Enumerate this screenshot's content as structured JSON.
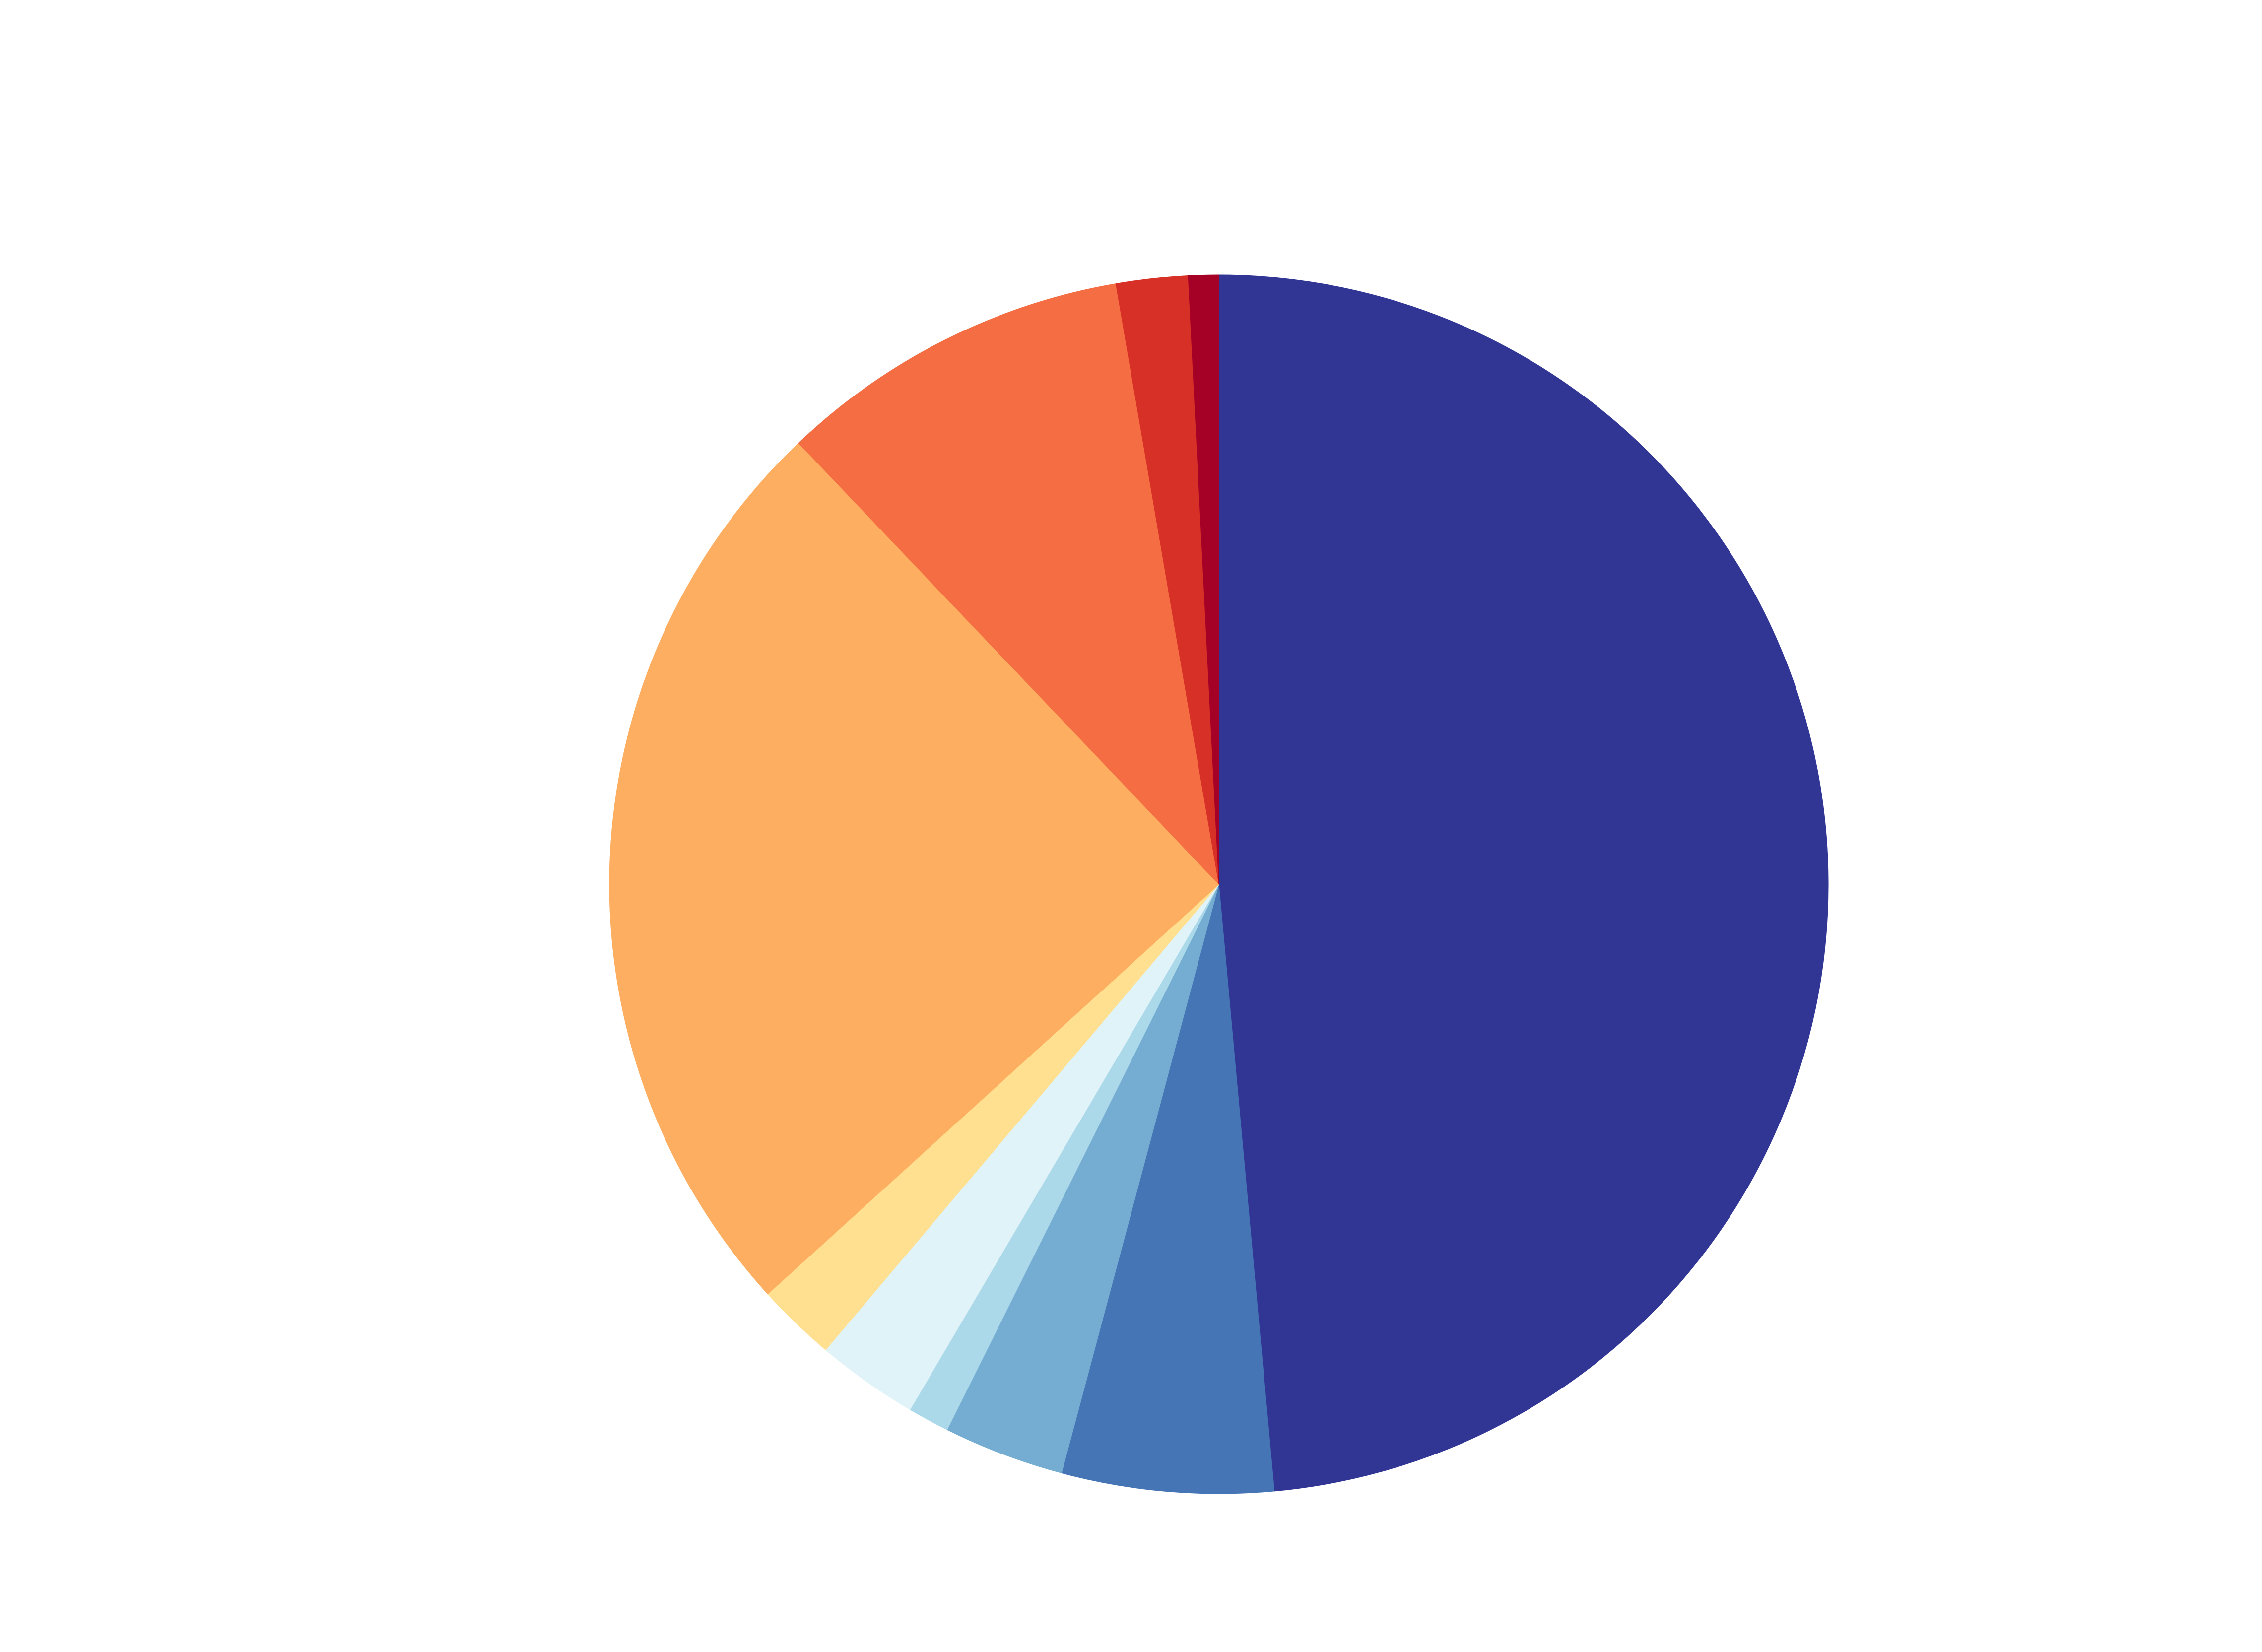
{
  "chart_data": {
    "type": "pie",
    "title": "",
    "start_angle": "12 o'clock",
    "direction": "clockwise",
    "legend": "none",
    "series": [
      {
        "values": [
          48.5,
          5.6,
          3.2,
          1.1,
          2.7,
          2.1,
          24.6,
          9.4,
          1.9,
          0.8
        ],
        "colors": [
          "#313695",
          "#4575b4",
          "#74add1",
          "#abd9e9",
          "#e0f3f8",
          "#fee090",
          "#fdae61",
          "#f46d43",
          "#d73027",
          "#a50026"
        ]
      }
    ]
  }
}
